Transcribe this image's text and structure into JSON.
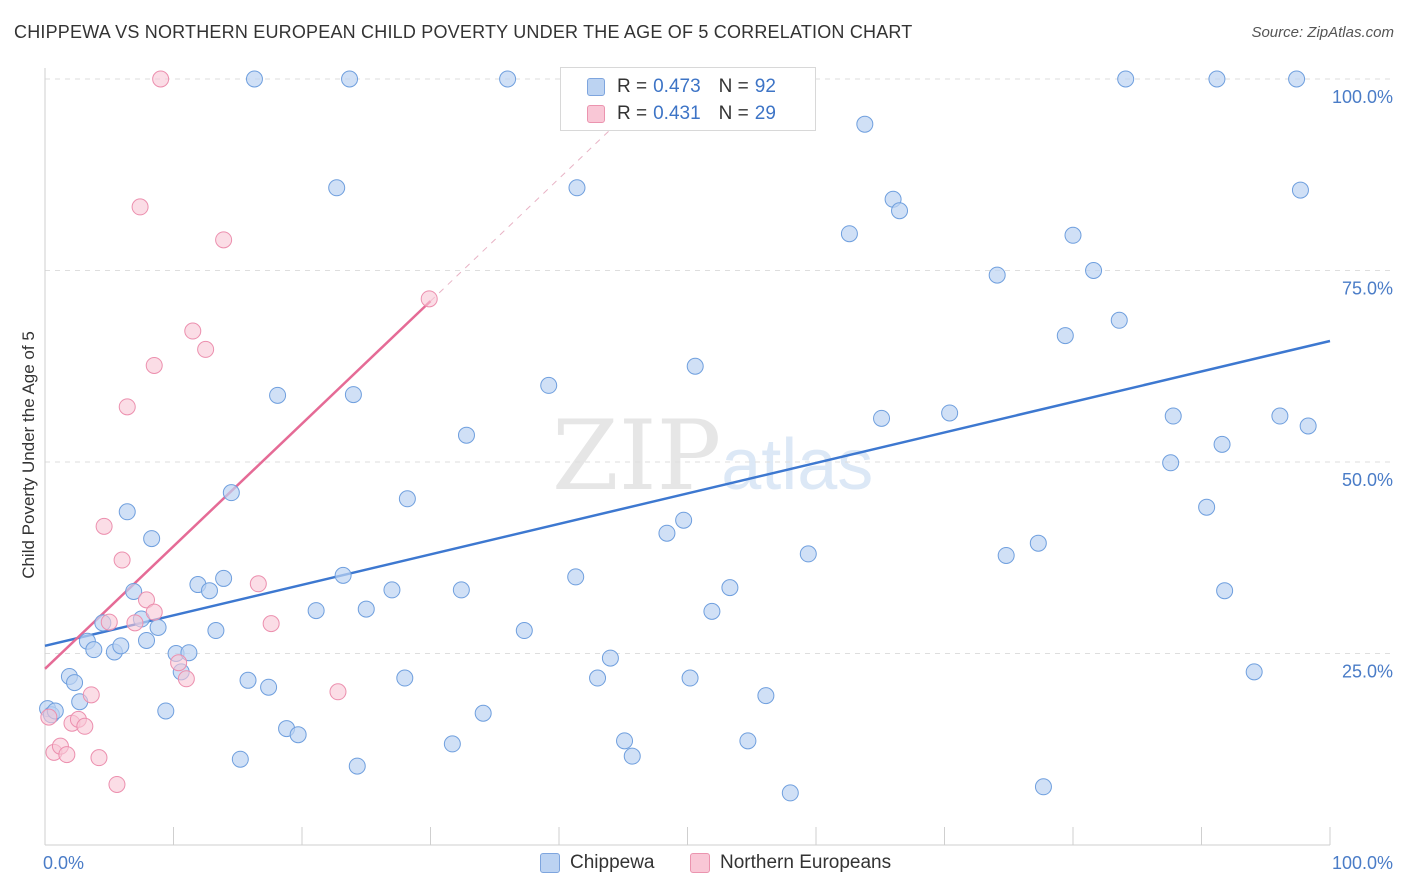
{
  "header": {
    "title": "CHIPPEWA VS NORTHERN EUROPEAN CHILD POVERTY UNDER THE AGE OF 5 CORRELATION CHART",
    "source": "Source: ZipAtlas.com"
  },
  "watermark": {
    "zip": "ZIP",
    "atlas": "atlas"
  },
  "legend": {
    "rows": [
      {
        "r_label": "R =",
        "r_value": "0.473",
        "n_label": "N =",
        "n_value": "92",
        "color": "#bcd3f2"
      },
      {
        "r_label": "R =",
        "r_value": "0.431",
        "n_label": "N =",
        "n_value": "29",
        "color": "#f9c7d6"
      }
    ]
  },
  "bottom_legend": {
    "items": [
      {
        "label": "Chippewa",
        "color": "#bcd3f2"
      },
      {
        "label": "Northern Europeans",
        "color": "#f9c7d6"
      }
    ]
  },
  "chart_data": {
    "type": "scatter",
    "title": "CHIPPEWA VS NORTHERN EUROPEAN CHILD POVERTY UNDER THE AGE OF 5 CORRELATION CHART",
    "xlabel": "",
    "ylabel": "Child Poverty Under the Age of 5",
    "xlim": [
      0,
      100
    ],
    "ylim": [
      0,
      100
    ],
    "x_tick_labels": [
      "0.0%",
      "100.0%"
    ],
    "y_tick_labels": [
      "25.0%",
      "50.0%",
      "75.0%",
      "100.0%"
    ],
    "y_tick_values": [
      25,
      50,
      75,
      100
    ],
    "grid": true,
    "legend_placement": "top-center",
    "colors": {
      "chippewa": "#6f9fde",
      "chippewa_fill": "#bcd3f2",
      "northern": "#ec8fae",
      "northern_fill": "#f9c7d6",
      "blue_line": "#3d78d0",
      "pink_line": "#e56b96"
    },
    "series": [
      {
        "name": "Chippewa",
        "points": [
          [
            0.2,
            17.8
          ],
          [
            0.5,
            17.0
          ],
          [
            0.8,
            17.5
          ],
          [
            1.9,
            22.0
          ],
          [
            2.3,
            21.2
          ],
          [
            2.7,
            18.7
          ],
          [
            3.3,
            26.6
          ],
          [
            3.8,
            25.5
          ],
          [
            4.5,
            29.0
          ],
          [
            5.4,
            25.2
          ],
          [
            5.9,
            26.0
          ],
          [
            6.4,
            43.5
          ],
          [
            6.9,
            33.1
          ],
          [
            7.5,
            29.5
          ],
          [
            7.9,
            26.7
          ],
          [
            8.3,
            40.0
          ],
          [
            8.8,
            28.4
          ],
          [
            9.4,
            17.5
          ],
          [
            10.2,
            25.0
          ],
          [
            10.6,
            22.6
          ],
          [
            11.2,
            25.1
          ],
          [
            11.9,
            34.0
          ],
          [
            12.8,
            33.2
          ],
          [
            13.3,
            28.0
          ],
          [
            13.9,
            34.8
          ],
          [
            14.5,
            46.0
          ],
          [
            15.2,
            11.2
          ],
          [
            15.8,
            21.5
          ],
          [
            17.4,
            20.6
          ],
          [
            18.1,
            58.7
          ],
          [
            18.8,
            15.2
          ],
          [
            19.7,
            14.4
          ],
          [
            16.3,
            100.0
          ],
          [
            21.1,
            30.6
          ],
          [
            22.7,
            85.8
          ],
          [
            23.2,
            35.2
          ],
          [
            23.7,
            100.0
          ],
          [
            24.0,
            58.8
          ],
          [
            24.3,
            10.3
          ],
          [
            25.0,
            30.8
          ],
          [
            27.0,
            33.3
          ],
          [
            28.0,
            21.8
          ],
          [
            28.2,
            45.2
          ],
          [
            31.7,
            13.2
          ],
          [
            32.4,
            33.3
          ],
          [
            32.8,
            53.5
          ],
          [
            34.1,
            17.2
          ],
          [
            36.0,
            100.0
          ],
          [
            37.3,
            28.0
          ],
          [
            39.2,
            60.0
          ],
          [
            41.3,
            35.0
          ],
          [
            41.4,
            85.8
          ],
          [
            43.0,
            21.8
          ],
          [
            44.0,
            24.4
          ],
          [
            45.1,
            13.6
          ],
          [
            45.7,
            11.6
          ],
          [
            48.4,
            40.7
          ],
          [
            49.7,
            42.4
          ],
          [
            50.2,
            21.8
          ],
          [
            50.6,
            62.5
          ],
          [
            51.9,
            30.5
          ],
          [
            53.3,
            33.6
          ],
          [
            54.7,
            13.6
          ],
          [
            56.1,
            19.5
          ],
          [
            58.0,
            6.8
          ],
          [
            59.4,
            38.0
          ],
          [
            62.6,
            79.8
          ],
          [
            63.8,
            94.1
          ],
          [
            65.1,
            55.7
          ],
          [
            66.0,
            84.3
          ],
          [
            66.5,
            82.8
          ],
          [
            70.4,
            56.4
          ],
          [
            74.1,
            74.4
          ],
          [
            74.8,
            37.8
          ],
          [
            77.3,
            39.4
          ],
          [
            77.7,
            7.6
          ],
          [
            79.4,
            66.5
          ],
          [
            80.0,
            79.6
          ],
          [
            81.6,
            75.0
          ],
          [
            83.6,
            68.5
          ],
          [
            84.1,
            100.0
          ],
          [
            87.6,
            49.9
          ],
          [
            87.8,
            56.0
          ],
          [
            90.4,
            44.1
          ],
          [
            91.2,
            100.0
          ],
          [
            91.6,
            52.3
          ],
          [
            91.8,
            33.2
          ],
          [
            94.1,
            22.6
          ],
          [
            96.1,
            56.0
          ],
          [
            97.4,
            100.0
          ],
          [
            97.7,
            85.5
          ],
          [
            98.3,
            54.7
          ]
        ]
      },
      {
        "name": "Northern Europeans",
        "points": [
          [
            0.3,
            16.7
          ],
          [
            0.7,
            12.1
          ],
          [
            1.2,
            12.9
          ],
          [
            1.7,
            11.8
          ],
          [
            2.1,
            15.9
          ],
          [
            2.6,
            16.4
          ],
          [
            3.1,
            15.5
          ],
          [
            3.6,
            19.6
          ],
          [
            4.2,
            11.4
          ],
          [
            4.6,
            41.6
          ],
          [
            5.0,
            29.1
          ],
          [
            5.6,
            7.9
          ],
          [
            6.0,
            37.2
          ],
          [
            6.4,
            57.2
          ],
          [
            7.0,
            29.0
          ],
          [
            7.4,
            83.3
          ],
          [
            7.9,
            32.0
          ],
          [
            8.5,
            30.4
          ],
          [
            8.5,
            62.6
          ],
          [
            9.0,
            100.0
          ],
          [
            10.4,
            23.8
          ],
          [
            11.0,
            21.7
          ],
          [
            11.5,
            67.1
          ],
          [
            12.5,
            64.7
          ],
          [
            13.9,
            79.0
          ],
          [
            16.6,
            34.1
          ],
          [
            17.6,
            28.9
          ],
          [
            22.8,
            20.0
          ],
          [
            29.9,
            71.3
          ]
        ]
      }
    ],
    "trend_lines": [
      {
        "name": "Chippewa",
        "from": [
          0,
          26.0
        ],
        "to": [
          100,
          65.8
        ]
      },
      {
        "name": "Northern Europeans",
        "from": [
          0,
          23.0
        ],
        "to": [
          30,
          71.0
        ],
        "extended_to": [
          45,
          95.0
        ]
      }
    ]
  }
}
